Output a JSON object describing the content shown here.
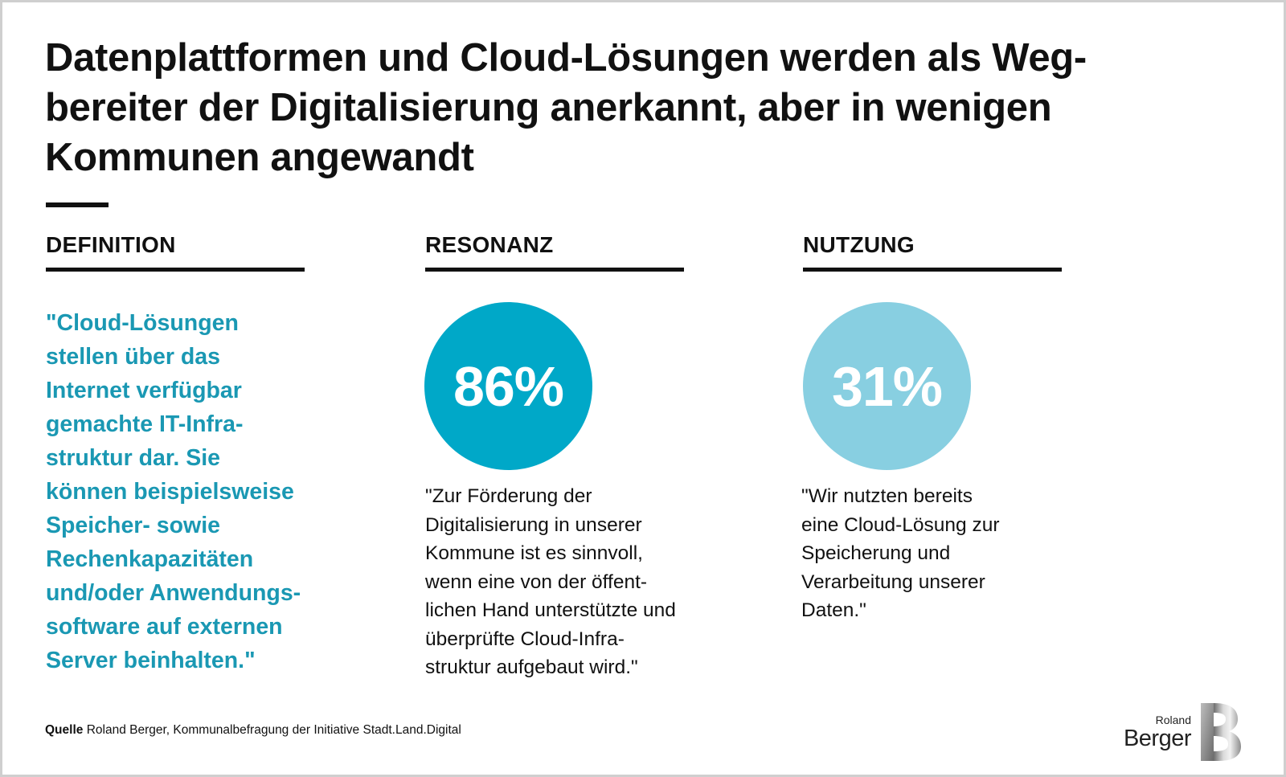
{
  "title": "Datenplattformen und Cloud-Lösungen werden als Weg-\nbereiter der Digitalisierung anerkannt, aber in wenigen\nKommunen angewandt",
  "columns": {
    "definition": {
      "heading": "DEFINITION",
      "quote": "\"Cloud-Lösungen\nstellen über das\nInternet verfügbar\ngemachte IT-Infra-\nstruktur dar. Sie\nkönnen beispielsweise\nSpeicher- sowie\nRechenkapazitäten\nund/oder Anwendungs-\nsoftware auf externen\nServer beinhalten.\""
    },
    "resonanz": {
      "heading": "RESONANZ",
      "value": "86%",
      "quote": "\"Zur Förderung der\nDigitalisierung in unserer\nKommune ist es sinnvoll,\nwenn eine von der öffent-\nlichen Hand unterstützte und\nüberprüfte Cloud-Infra-\nstruktur aufgebaut wird.\""
    },
    "nutzung": {
      "heading": "NUTZUNG",
      "value": "31%",
      "quote": "\"Wir nutzten bereits\neine Cloud-Lösung zur\nSpeicherung und\nVerarbeitung unserer\nDaten.\""
    }
  },
  "source": {
    "label": "Quelle",
    "text": "Roland Berger, Kommunalbefragung der Initiative Stadt.Land.Digital"
  },
  "logo": {
    "line1": "Roland",
    "line2": "Berger",
    "icon": "roland-berger-b-logo"
  },
  "colors": {
    "accent_dark": "#00a8c8",
    "accent_light": "#88cfe1",
    "definition_text": "#1a98b3"
  }
}
